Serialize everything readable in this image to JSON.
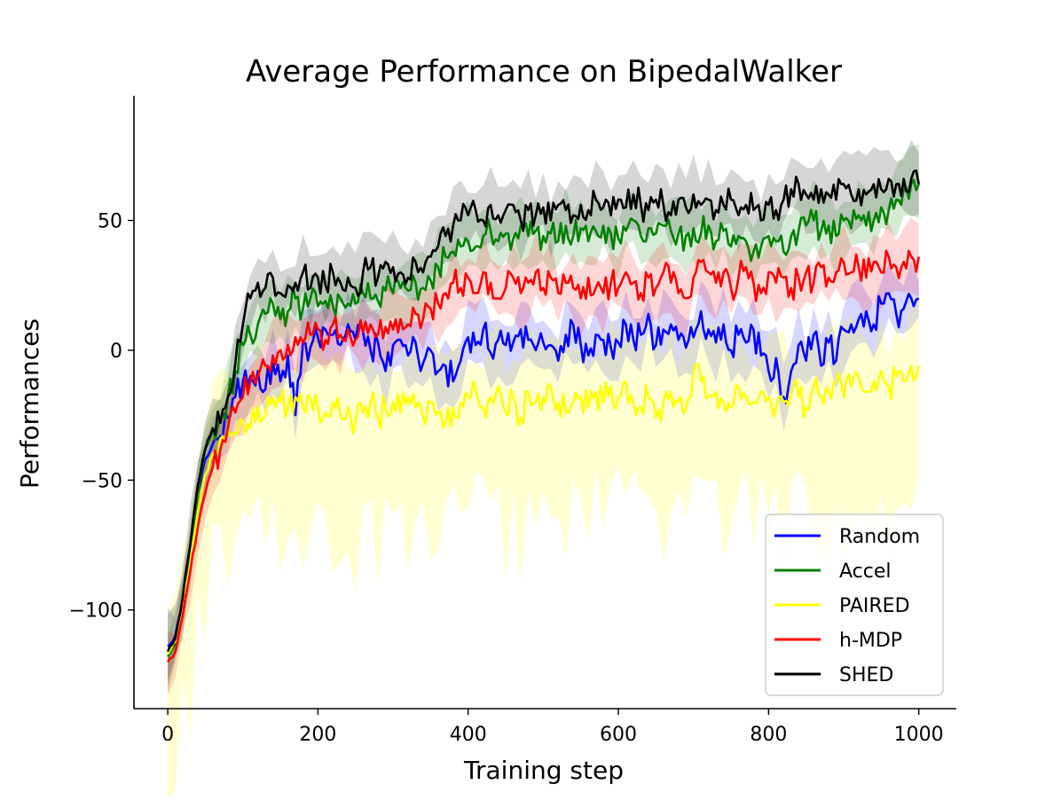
{
  "chart_data": {
    "type": "line",
    "title": "Average Performance on BipedalWalker",
    "xlabel": "Training step",
    "ylabel": "Performances",
    "xlim": [
      -45,
      1050
    ],
    "ylim": [
      -138,
      98
    ],
    "xticks": [
      0,
      200,
      400,
      600,
      800,
      1000
    ],
    "yticks": [
      -100,
      -50,
      0,
      50
    ],
    "tick_labels": {
      "x": [
        "0",
        "200",
        "400",
        "600",
        "800",
        "1000"
      ],
      "y": [
        "−100",
        "−50",
        "0",
        "50"
      ]
    },
    "grid": false,
    "legend": "lower-right",
    "shaded_band": "mean ± spread",
    "series": [
      {
        "name": "Random",
        "color": "#0000ff",
        "x": [
          0,
          10,
          20,
          30,
          40,
          50,
          60,
          70,
          80,
          90,
          100,
          110,
          120,
          130,
          140,
          150,
          160,
          170,
          180,
          190,
          200,
          210,
          220,
          230,
          240,
          250,
          260,
          270,
          280,
          290,
          300,
          310,
          320,
          330,
          340,
          350,
          360,
          370,
          380,
          390,
          400,
          410,
          420,
          430,
          440,
          450,
          460,
          470,
          480,
          490,
          500,
          510,
          520,
          530,
          540,
          550,
          560,
          570,
          580,
          590,
          600,
          610,
          620,
          630,
          640,
          650,
          660,
          670,
          680,
          690,
          700,
          710,
          720,
          730,
          740,
          750,
          760,
          770,
          780,
          790,
          800,
          810,
          820,
          830,
          840,
          850,
          860,
          870,
          880,
          890,
          900,
          910,
          920,
          930,
          940,
          950,
          960,
          970,
          980,
          990,
          1000
        ],
        "values": [
          -114,
          -110,
          -97,
          -80,
          -55,
          -42,
          -36,
          -33,
          -26,
          -18,
          -12,
          -10,
          -8,
          -15,
          -5,
          -12,
          -2,
          -25,
          3,
          1,
          5,
          8,
          6,
          2,
          10,
          4,
          7,
          0,
          3,
          -8,
          2,
          4,
          -2,
          3,
          -5,
          0,
          -8,
          -6,
          -12,
          -4,
          5,
          2,
          8,
          -1,
          4,
          2,
          3,
          8,
          4,
          0,
          3,
          2,
          -4,
          6,
          10,
          2,
          -2,
          6,
          4,
          1,
          3,
          10,
          4,
          6,
          14,
          2,
          8,
          10,
          4,
          1,
          5,
          15,
          8,
          3,
          10,
          0,
          6,
          3,
          8,
          -2,
          -8,
          -3,
          -18,
          -8,
          2,
          -4,
          6,
          -6,
          3,
          -4,
          8,
          10,
          12,
          15,
          10,
          18,
          22,
          14,
          16,
          20,
          20
        ]
      },
      {
        "name": "Accel",
        "color": "#008000",
        "x": [
          0,
          10,
          20,
          30,
          40,
          50,
          60,
          70,
          80,
          90,
          100,
          110,
          120,
          130,
          140,
          150,
          160,
          170,
          180,
          190,
          200,
          210,
          220,
          230,
          240,
          250,
          260,
          270,
          280,
          290,
          300,
          310,
          320,
          330,
          340,
          350,
          360,
          370,
          380,
          390,
          400,
          410,
          420,
          430,
          440,
          450,
          460,
          470,
          480,
          490,
          500,
          510,
          520,
          530,
          540,
          550,
          560,
          570,
          580,
          590,
          600,
          610,
          620,
          630,
          640,
          650,
          660,
          670,
          680,
          690,
          700,
          710,
          720,
          730,
          740,
          750,
          760,
          770,
          780,
          790,
          800,
          810,
          820,
          830,
          840,
          850,
          860,
          870,
          880,
          890,
          900,
          910,
          920,
          930,
          940,
          950,
          960,
          970,
          980,
          990,
          1000
        ],
        "values": [
          -118,
          -113,
          -98,
          -80,
          -55,
          -38,
          -30,
          -26,
          -18,
          -8,
          2,
          6,
          10,
          14,
          18,
          12,
          15,
          20,
          16,
          20,
          17,
          19,
          17,
          20,
          18,
          18,
          22,
          20,
          19,
          23,
          22,
          24,
          23,
          26,
          24,
          27,
          32,
          36,
          38,
          40,
          42,
          40,
          44,
          46,
          42,
          45,
          43,
          48,
          44,
          46,
          44,
          45,
          42,
          48,
          44,
          47,
          42,
          46,
          48,
          45,
          43,
          46,
          50,
          44,
          47,
          45,
          48,
          46,
          45,
          44,
          47,
          45,
          48,
          42,
          46,
          40,
          44,
          42,
          38,
          40,
          44,
          42,
          38,
          44,
          46,
          48,
          50,
          46,
          48,
          44,
          50,
          47,
          52,
          48,
          50,
          55,
          54,
          58,
          62,
          64,
          64
        ]
      },
      {
        "name": "PAIRED",
        "color": "#ffff00",
        "x": [
          0,
          10,
          20,
          30,
          40,
          50,
          60,
          70,
          80,
          90,
          100,
          110,
          120,
          130,
          140,
          150,
          160,
          170,
          180,
          190,
          200,
          210,
          220,
          230,
          240,
          250,
          260,
          270,
          280,
          290,
          300,
          310,
          320,
          330,
          340,
          350,
          360,
          370,
          380,
          390,
          400,
          410,
          420,
          430,
          440,
          450,
          460,
          470,
          480,
          490,
          500,
          510,
          520,
          530,
          540,
          550,
          560,
          570,
          580,
          590,
          600,
          610,
          620,
          630,
          640,
          650,
          660,
          670,
          680,
          690,
          700,
          710,
          720,
          730,
          740,
          750,
          760,
          770,
          780,
          790,
          800,
          810,
          820,
          830,
          840,
          850,
          860,
          870,
          880,
          890,
          900,
          910,
          920,
          930,
          940,
          950,
          960,
          970,
          980,
          990,
          1000
        ],
        "values": [
          -117,
          -112,
          -98,
          -82,
          -62,
          -48,
          -40,
          -34,
          -30,
          -32,
          -28,
          -30,
          -22,
          -25,
          -18,
          -20,
          -22,
          -18,
          -22,
          -18,
          -22,
          -24,
          -20,
          -26,
          -22,
          -28,
          -24,
          -20,
          -26,
          -22,
          -20,
          -24,
          -18,
          -22,
          -26,
          -20,
          -24,
          -28,
          -22,
          -20,
          -18,
          -15,
          -22,
          -18,
          -14,
          -24,
          -18,
          -26,
          -16,
          -20,
          -18,
          -14,
          -20,
          -24,
          -20,
          -18,
          -22,
          -16,
          -20,
          -14,
          -18,
          -12,
          -20,
          -22,
          -18,
          -26,
          -20,
          -16,
          -20,
          -22,
          -8,
          -12,
          -18,
          -16,
          -20,
          -22,
          -14,
          -18,
          -20,
          -16,
          -18,
          -22,
          -20,
          -16,
          -18,
          -22,
          -14,
          -18,
          -16,
          -12,
          -18,
          -14,
          -10,
          -16,
          -12,
          -8,
          -14,
          -10,
          -12,
          -6,
          -6
        ]
      },
      {
        "name": "h-MDP",
        "color": "#ff0000",
        "x": [
          0,
          10,
          20,
          30,
          40,
          50,
          60,
          70,
          80,
          90,
          100,
          110,
          120,
          130,
          140,
          150,
          160,
          170,
          180,
          190,
          200,
          210,
          220,
          230,
          240,
          250,
          260,
          270,
          280,
          290,
          300,
          310,
          320,
          330,
          340,
          350,
          360,
          370,
          380,
          390,
          400,
          410,
          420,
          430,
          440,
          450,
          460,
          470,
          480,
          490,
          500,
          510,
          520,
          530,
          540,
          550,
          560,
          570,
          580,
          590,
          600,
          610,
          620,
          630,
          640,
          650,
          660,
          670,
          680,
          690,
          700,
          710,
          720,
          730,
          740,
          750,
          760,
          770,
          780,
          790,
          800,
          810,
          820,
          830,
          840,
          850,
          860,
          870,
          880,
          890,
          900,
          910,
          920,
          930,
          940,
          950,
          960,
          970,
          980,
          990,
          1000
        ],
        "values": [
          -120,
          -116,
          -102,
          -85,
          -68,
          -55,
          -45,
          -38,
          -30,
          -24,
          -18,
          -12,
          -10,
          -6,
          -2,
          0,
          2,
          5,
          3,
          6,
          8,
          4,
          10,
          6,
          8,
          4,
          7,
          10,
          6,
          9,
          8,
          12,
          10,
          14,
          12,
          16,
          18,
          22,
          26,
          24,
          28,
          22,
          30,
          26,
          20,
          24,
          28,
          22,
          26,
          30,
          24,
          28,
          22,
          26,
          24,
          20,
          28,
          24,
          22,
          26,
          24,
          30,
          26,
          22,
          28,
          24,
          30,
          26,
          22,
          20,
          28,
          34,
          30,
          26,
          30,
          24,
          28,
          32,
          26,
          22,
          30,
          26,
          28,
          24,
          28,
          30,
          26,
          32,
          28,
          30,
          34,
          30,
          32,
          28,
          34,
          30,
          36,
          32,
          34,
          36,
          36
        ]
      },
      {
        "name": "SHED",
        "color": "#000000",
        "x": [
          0,
          10,
          20,
          30,
          40,
          50,
          60,
          70,
          80,
          90,
          100,
          110,
          120,
          130,
          140,
          150,
          160,
          170,
          180,
          190,
          200,
          210,
          220,
          230,
          240,
          250,
          260,
          270,
          280,
          290,
          300,
          310,
          320,
          330,
          340,
          350,
          360,
          370,
          380,
          390,
          400,
          410,
          420,
          430,
          440,
          450,
          460,
          470,
          480,
          490,
          500,
          510,
          520,
          530,
          540,
          550,
          560,
          570,
          580,
          590,
          600,
          610,
          620,
          630,
          640,
          650,
          660,
          670,
          680,
          690,
          700,
          710,
          720,
          730,
          740,
          750,
          760,
          770,
          780,
          790,
          800,
          810,
          820,
          830,
          840,
          850,
          860,
          870,
          880,
          890,
          900,
          910,
          920,
          930,
          940,
          950,
          960,
          970,
          980,
          990,
          1000
        ],
        "values": [
          -116,
          -111,
          -95,
          -75,
          -52,
          -38,
          -30,
          -28,
          -18,
          -5,
          10,
          20,
          26,
          24,
          28,
          22,
          25,
          26,
          30,
          24,
          28,
          25,
          30,
          26,
          28,
          24,
          30,
          32,
          28,
          34,
          32,
          30,
          28,
          34,
          30,
          36,
          40,
          44,
          48,
          50,
          52,
          54,
          50,
          56,
          52,
          54,
          56,
          50,
          54,
          52,
          55,
          50,
          56,
          54,
          52,
          56,
          54,
          58,
          55,
          52,
          58,
          55,
          60,
          56,
          54,
          58,
          56,
          52,
          58,
          55,
          60,
          56,
          58,
          54,
          56,
          58,
          52,
          56,
          54,
          50,
          56,
          54,
          58,
          62,
          64,
          60,
          58,
          62,
          60,
          58,
          64,
          60,
          62,
          60,
          64,
          62,
          66,
          64,
          66,
          66,
          64
        ]
      }
    ]
  }
}
